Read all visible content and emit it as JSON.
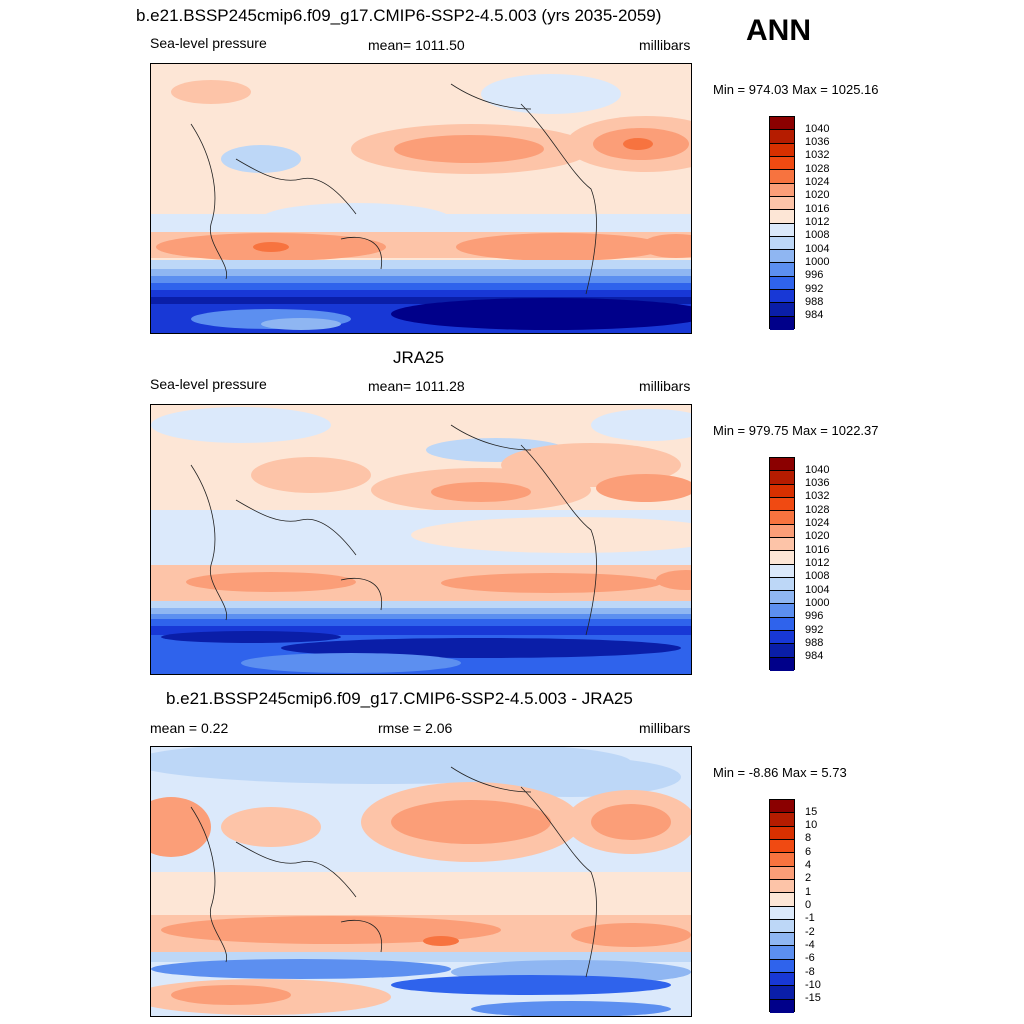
{
  "season": "ANN",
  "panels": [
    {
      "title": "b.e21.BSSP245cmip6.f09_g17.CMIP6-SSP2-4.5.003 (yrs 2035-2059)",
      "left_label": "Sea-level pressure",
      "center_label": "mean= 1011.50",
      "right_label": "millibars",
      "minmax": "Min = 974.03 Max = 1025.16"
    },
    {
      "title": "JRA25",
      "left_label": "Sea-level pressure",
      "center_label": "mean= 1011.28",
      "right_label": "millibars",
      "minmax": "Min = 979.75 Max = 1022.37"
    },
    {
      "title": "b.e21.BSSP245cmip6.f09_g17.CMIP6-SSP2-4.5.003 - JRA25",
      "left_label": "mean =   0.22",
      "center_label": "rmse =   2.06",
      "right_label": "millibars",
      "minmax": "Min =  -8.86 Max =   5.73"
    }
  ],
  "colorbars": {
    "slp": {
      "labels": [
        "1040",
        "1036",
        "1032",
        "1028",
        "1024",
        "1020",
        "1016",
        "1012",
        "1008",
        "1004",
        "1000",
        "996",
        "992",
        "988",
        "984"
      ],
      "colors": [
        "#8b0000",
        "#b51c00",
        "#d83000",
        "#f04a12",
        "#f7733f",
        "#fb9e78",
        "#fdc4a8",
        "#fde6d6",
        "#dbe9fb",
        "#bdd7f7",
        "#8fb6f2",
        "#5c8ff0",
        "#2f63ec",
        "#1838d6",
        "#0a1ea8",
        "#00008a"
      ]
    },
    "diff": {
      "labels": [
        "15",
        "10",
        "8",
        "6",
        "4",
        "2",
        "1",
        "0",
        "-1",
        "-2",
        "-4",
        "-6",
        "-8",
        "-10",
        "-15"
      ],
      "colors": [
        "#8b0000",
        "#b51c00",
        "#d83000",
        "#f04a12",
        "#f7733f",
        "#fb9e78",
        "#fdc4a8",
        "#fde6d6",
        "#dbe9fb",
        "#bdd7f7",
        "#8fb6f2",
        "#5c8ff0",
        "#2f63ec",
        "#1838d6",
        "#0a1ea8",
        "#00008a"
      ]
    }
  }
}
